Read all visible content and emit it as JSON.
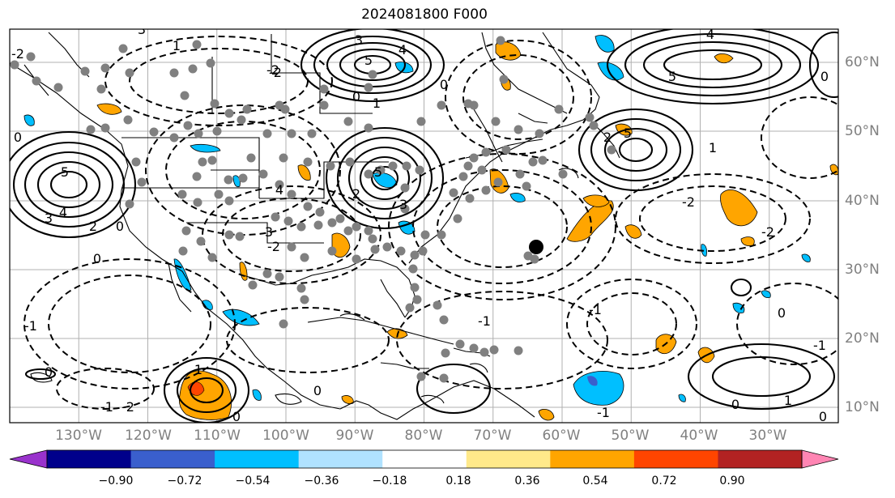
{
  "title": "2024081800 F000",
  "lat_labels": [
    "60°N",
    "50°N",
    "40°N",
    "30°N",
    "20°N",
    "10°N"
  ],
  "lon_labels": [
    "130°W",
    "120°W",
    "110°W",
    "100°W",
    "90°W",
    "80°W",
    "70°W",
    "60°W",
    "50°W",
    "40°W",
    "30°W"
  ],
  "contour_labels": [
    "5",
    "4",
    "3",
    "2",
    "1",
    "0",
    "-1",
    "-2"
  ],
  "colorbar": {
    "ticks": [
      "−0.90",
      "−0.72",
      "−0.54",
      "−0.36",
      "−0.18",
      "0.18",
      "0.36",
      "0.54",
      "0.72",
      "0.90"
    ],
    "colors": [
      "#9932cc",
      "#00008b",
      "#3a5fcd",
      "#00bfff",
      "#b0e2ff",
      "#ffffff",
      "#ffe98a",
      "#ffa500",
      "#ff4500",
      "#b22222",
      "#ff85b3"
    ]
  },
  "colors": {
    "land_line": "#000000",
    "grid": "#b0b0b0",
    "dot": "#808080",
    "pos_fill": "#ffa500",
    "neg_fill": "#00bfff"
  },
  "map_extent": {
    "lon_min": -140,
    "lon_max": -20,
    "lat_min": 8,
    "lat_max": 65
  }
}
